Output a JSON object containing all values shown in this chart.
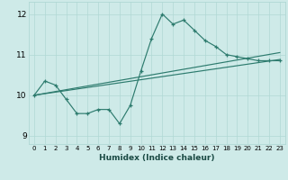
{
  "xlabel": "Humidex (Indice chaleur)",
  "bg_color": "#ceeae8",
  "line_color": "#2d7b6e",
  "grid_color": "#b0d8d4",
  "xlim": [
    -0.5,
    23.5
  ],
  "ylim": [
    8.8,
    12.3
  ],
  "xticks": [
    0,
    1,
    2,
    3,
    4,
    5,
    6,
    7,
    8,
    9,
    10,
    11,
    12,
    13,
    14,
    15,
    16,
    17,
    18,
    19,
    20,
    21,
    22,
    23
  ],
  "yticks": [
    9,
    10,
    11,
    12
  ],
  "line1_x": [
    0,
    1,
    2,
    3,
    4,
    5,
    6,
    7,
    8,
    9,
    10,
    11,
    12,
    13,
    14,
    15,
    16,
    17,
    18,
    19,
    20,
    21,
    22,
    23
  ],
  "line1_y": [
    10.0,
    10.35,
    10.25,
    9.9,
    9.55,
    9.55,
    9.65,
    9.65,
    9.3,
    9.75,
    10.6,
    11.4,
    12.0,
    11.75,
    11.85,
    11.6,
    11.35,
    11.2,
    11.0,
    10.95,
    10.9,
    10.85,
    10.85,
    10.85
  ],
  "line2_x": [
    0,
    23
  ],
  "line2_y": [
    10.0,
    11.05
  ],
  "line3_x": [
    0,
    23
  ],
  "line3_y": [
    10.0,
    10.88
  ]
}
